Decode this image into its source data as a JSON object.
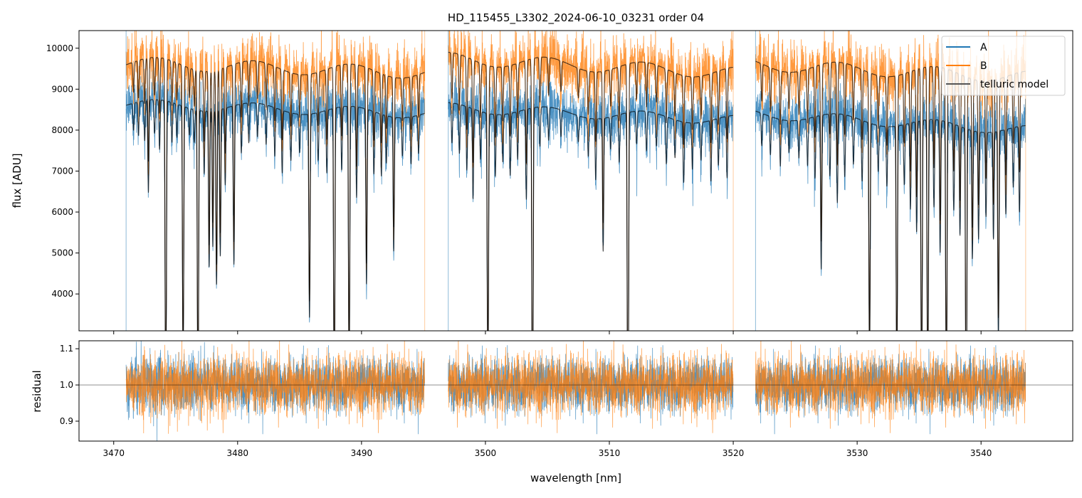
{
  "chart_data": [
    {
      "type": "line",
      "title": "HD_115455_L3302_2024-06-10_03231  order 04",
      "xlabel": "",
      "ylabel": "flux [ADU]",
      "xlim": [
        3467.2,
        3547.4
      ],
      "ylim": [
        3100,
        10430
      ],
      "xticks": [
        3470,
        3480,
        3490,
        3500,
        3510,
        3520,
        3530,
        3540
      ],
      "yticks": [
        4000,
        5000,
        6000,
        7000,
        8000,
        9000,
        10000
      ],
      "ytick_labels": [
        "4000",
        "5000",
        "6000",
        "7000",
        "8000",
        "9000",
        "10000"
      ],
      "legend": {
        "placement": "top-right",
        "entries": [
          "A",
          "B",
          "telluric model"
        ]
      },
      "colors": {
        "A": "#1f77b4",
        "B": "#ff7f0e",
        "telluric model": "#000000"
      },
      "segments": [
        {
          "start": 3471.0,
          "end": 3495.1,
          "continuum_A": [
            8650,
            8400
          ],
          "continuum_B": [
            9650,
            9400
          ]
        },
        {
          "start": 3497.0,
          "end": 3520.0,
          "continuum_A": [
            8550,
            8250
          ],
          "continuum_B": [
            9750,
            9400
          ]
        },
        {
          "start": 3521.8,
          "end": 3543.6,
          "continuum_A": [
            8400,
            8000
          ],
          "continuum_B": [
            9600,
            9300
          ]
        }
      ],
      "noise_fraction": 0.035,
      "telluric_lines": [
        [
          3471.6,
          0.08
        ],
        [
          3472.0,
          0.1
        ],
        [
          3472.5,
          0.12
        ],
        [
          3472.8,
          0.3
        ],
        [
          3473.3,
          0.1
        ],
        [
          3473.7,
          0.15
        ],
        [
          3474.2,
          1.6
        ],
        [
          3474.7,
          0.12
        ],
        [
          3475.1,
          0.1
        ],
        [
          3475.6,
          1.2
        ],
        [
          3476.1,
          0.08
        ],
        [
          3476.5,
          0.1
        ],
        [
          3476.8,
          1.5
        ],
        [
          3477.3,
          0.2
        ],
        [
          3477.7,
          0.6
        ],
        [
          3478.0,
          0.5
        ],
        [
          3478.3,
          0.7
        ],
        [
          3478.6,
          0.55
        ],
        [
          3479.0,
          0.25
        ],
        [
          3479.7,
          0.6
        ],
        [
          3480.3,
          0.15
        ],
        [
          3480.9,
          0.12
        ],
        [
          3481.6,
          0.1
        ],
        [
          3482.3,
          0.12
        ],
        [
          3483.0,
          0.15
        ],
        [
          3483.6,
          0.2
        ],
        [
          3484.3,
          0.15
        ],
        [
          3485.0,
          0.12
        ],
        [
          3485.8,
          0.9
        ],
        [
          3486.5,
          0.15
        ],
        [
          3487.2,
          0.2
        ],
        [
          3487.8,
          1.5
        ],
        [
          3488.4,
          0.2
        ],
        [
          3489.0,
          1.3
        ],
        [
          3489.6,
          0.3
        ],
        [
          3490.4,
          0.7
        ],
        [
          3491.0,
          0.2
        ],
        [
          3491.6,
          0.2
        ],
        [
          3492.0,
          0.15
        ],
        [
          3492.6,
          0.5
        ],
        [
          3493.3,
          0.12
        ],
        [
          3494.0,
          0.15
        ],
        [
          3494.6,
          0.12
        ],
        [
          3497.3,
          0.12
        ],
        [
          3497.9,
          0.15
        ],
        [
          3498.5,
          0.2
        ],
        [
          3499.0,
          0.3
        ],
        [
          3499.6,
          0.15
        ],
        [
          3500.2,
          1.4
        ],
        [
          3500.8,
          0.2
        ],
        [
          3501.4,
          0.15
        ],
        [
          3502.0,
          0.2
        ],
        [
          3502.6,
          0.15
        ],
        [
          3503.3,
          0.3
        ],
        [
          3503.8,
          1.8
        ],
        [
          3504.4,
          0.12
        ],
        [
          3505.1,
          0.1
        ],
        [
          3506.1,
          0.08
        ],
        [
          3507.5,
          0.08
        ],
        [
          3508.3,
          0.12
        ],
        [
          3508.9,
          0.2
        ],
        [
          3509.5,
          0.5
        ],
        [
          3510.1,
          0.1
        ],
        [
          3510.8,
          0.15
        ],
        [
          3511.5,
          2.0
        ],
        [
          3512.2,
          0.1
        ],
        [
          3513.0,
          0.12
        ],
        [
          3513.8,
          0.1
        ],
        [
          3514.6,
          0.15
        ],
        [
          3515.3,
          0.12
        ],
        [
          3516.0,
          0.2
        ],
        [
          3516.7,
          0.15
        ],
        [
          3517.4,
          0.12
        ],
        [
          3518.2,
          0.2
        ],
        [
          3518.8,
          0.15
        ],
        [
          3519.5,
          0.2
        ],
        [
          3522.3,
          0.1
        ],
        [
          3523.0,
          0.12
        ],
        [
          3523.8,
          0.15
        ],
        [
          3524.5,
          0.1
        ],
        [
          3525.3,
          0.12
        ],
        [
          3526.0,
          0.15
        ],
        [
          3526.6,
          0.2
        ],
        [
          3527.1,
          0.6
        ],
        [
          3527.8,
          0.2
        ],
        [
          3528.4,
          0.3
        ],
        [
          3529.0,
          0.2
        ],
        [
          3529.7,
          0.15
        ],
        [
          3530.4,
          0.2
        ],
        [
          3531.0,
          1.2
        ],
        [
          3531.7,
          0.15
        ],
        [
          3532.4,
          0.2
        ],
        [
          3533.2,
          1.3
        ],
        [
          3533.8,
          0.2
        ],
        [
          3534.3,
          0.3
        ],
        [
          3534.8,
          0.4
        ],
        [
          3535.2,
          1.5
        ],
        [
          3535.7,
          1.5
        ],
        [
          3536.2,
          0.3
        ],
        [
          3536.7,
          0.5
        ],
        [
          3537.2,
          1.5
        ],
        [
          3537.8,
          0.3
        ],
        [
          3538.3,
          0.4
        ],
        [
          3538.8,
          1.8
        ],
        [
          3539.3,
          0.5
        ],
        [
          3539.8,
          0.4
        ],
        [
          3540.4,
          0.3
        ],
        [
          3541.0,
          0.4
        ],
        [
          3541.4,
          1.0
        ],
        [
          3542.0,
          0.3
        ],
        [
          3542.6,
          0.2
        ],
        [
          3543.1,
          0.3
        ]
      ]
    },
    {
      "type": "line",
      "title": "",
      "xlabel": "wavelength [nm]",
      "ylabel": "residual",
      "xlim": [
        3467.2,
        3547.4
      ],
      "ylim": [
        0.845,
        1.122
      ],
      "xticks": [
        3470,
        3480,
        3490,
        3500,
        3510,
        3520,
        3530,
        3540
      ],
      "xtick_labels": [
        "3470",
        "3480",
        "3490",
        "3500",
        "3510",
        "3520",
        "3530",
        "3540"
      ],
      "yticks": [
        0.9,
        1.0,
        1.1
      ],
      "ytick_labels": [
        "0.9",
        "1.0",
        "1.1"
      ],
      "reference_line": 1.0,
      "residual_std": 0.04
    }
  ]
}
